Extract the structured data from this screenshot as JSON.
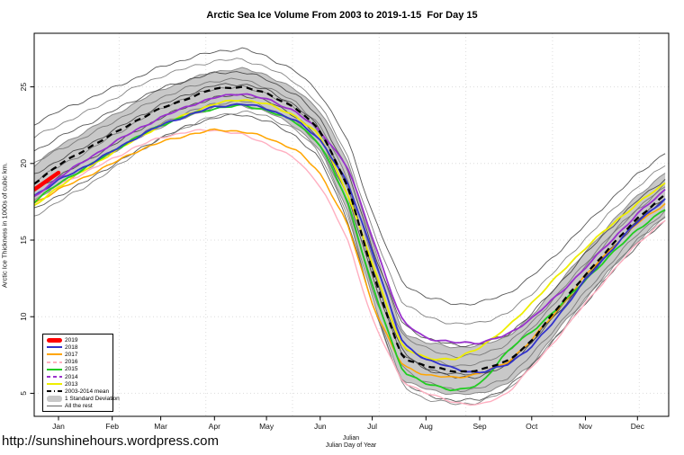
{
  "page": {
    "url_text": "http://sunshinehours.wordpress.com"
  },
  "chart_data": {
    "type": "line",
    "title": "Arctic Sea Ice Volume From 2003 to 2019-1-15  For Day 15",
    "ylabel": "Arctic Ice Thickness in 1000s of cubic km.",
    "xlabel_line1": "Julian",
    "xlabel_line2": "Julian Day of Year",
    "xlim": [
      1,
      367
    ],
    "ylim": [
      3.5,
      28.5
    ],
    "y_ticks": [
      5,
      10,
      15,
      20,
      25
    ],
    "x_gridline_days": [
      50,
      100,
      150,
      200,
      250,
      300,
      350
    ],
    "grid": "dotted",
    "legend_position": "bottom-left",
    "x_month_ticks": [
      {
        "label": "Jan",
        "day": 15
      },
      {
        "label": "Feb",
        "day": 46
      },
      {
        "label": "Mar",
        "day": 74
      },
      {
        "label": "Apr",
        "day": 105
      },
      {
        "label": "May",
        "day": 135
      },
      {
        "label": "Jun",
        "day": 166
      },
      {
        "label": "Jul",
        "day": 196
      },
      {
        "label": "Aug",
        "day": 227
      },
      {
        "label": "Sep",
        "day": 258
      },
      {
        "label": "Oct",
        "day": 288
      },
      {
        "label": "Nov",
        "day": 319
      },
      {
        "label": "Dec",
        "day": 349
      }
    ],
    "days": [
      1,
      15,
      32,
      46,
      60,
      74,
      91,
      105,
      121,
      135,
      152,
      166,
      182,
      196,
      213,
      227,
      244,
      258,
      274,
      288,
      305,
      319,
      335,
      349,
      365
    ],
    "band": {
      "name": "1 Standard Deviation",
      "fill": "#c8c8c8",
      "edge": "#8a8a8a",
      "upper": [
        19.9,
        21.1,
        22.2,
        23.1,
        24.0,
        24.8,
        25.5,
        26.0,
        26.2,
        25.8,
        24.8,
        23.5,
        20.1,
        14.9,
        9.0,
        8.3,
        8.0,
        8.1,
        8.7,
        10.0,
        12.4,
        14.2,
        16.3,
        17.9,
        19.4
      ],
      "lower": [
        17.5,
        18.7,
        19.8,
        20.7,
        21.6,
        22.4,
        23.1,
        23.7,
        23.8,
        23.4,
        22.4,
        20.9,
        16.9,
        11.2,
        5.8,
        5.3,
        4.9,
        5.0,
        5.6,
        6.9,
        9.4,
        11.2,
        13.3,
        14.9,
        16.6
      ]
    },
    "mean": {
      "name": "2003-2014 mean",
      "color": "#000000",
      "style": "dashed",
      "values": [
        18.7,
        19.9,
        21.0,
        21.9,
        22.8,
        23.6,
        24.3,
        24.9,
        25.0,
        24.6,
        23.6,
        22.2,
        18.5,
        13.0,
        7.3,
        6.8,
        6.4,
        6.5,
        7.1,
        8.4,
        10.9,
        12.7,
        14.8,
        16.4,
        18.0
      ]
    },
    "series": [
      {
        "name": "2016",
        "color": "#ffafc0",
        "width": 1.4,
        "values": [
          17.6,
          18.6,
          19.5,
          20.3,
          21.1,
          21.7,
          22.1,
          22.2,
          21.9,
          21.3,
          20.3,
          18.6,
          15.0,
          9.8,
          5.8,
          5.0,
          4.4,
          4.2,
          5.0,
          6.7,
          8.9,
          10.9,
          13.0,
          14.8,
          16.3
        ]
      },
      {
        "name": "2017",
        "color": "#ffa500",
        "width": 1.5,
        "values": [
          17.4,
          18.3,
          19.2,
          20.0,
          20.8,
          21.4,
          21.9,
          22.2,
          22.1,
          21.7,
          20.9,
          19.4,
          16.0,
          10.8,
          6.8,
          6.2,
          6.0,
          6.3,
          7.0,
          8.5,
          10.7,
          12.7,
          14.6,
          16.1,
          17.4
        ]
      },
      {
        "name": "2013",
        "color": "#eeee00",
        "width": 1.8,
        "values": [
          17.2,
          18.5,
          19.7,
          20.7,
          21.6,
          22.5,
          23.3,
          23.9,
          24.2,
          23.9,
          23.1,
          21.8,
          18.0,
          13.5,
          8.0,
          7.3,
          7.2,
          8.0,
          9.3,
          10.9,
          12.9,
          14.5,
          16.1,
          17.4,
          18.7
        ]
      },
      {
        "name": "2015",
        "color": "#22cc22",
        "width": 1.8,
        "values": [
          17.5,
          18.7,
          19.8,
          20.8,
          21.7,
          22.5,
          23.2,
          23.6,
          23.8,
          23.5,
          22.7,
          21.3,
          17.5,
          12.0,
          6.5,
          5.6,
          5.2,
          5.5,
          7.8,
          9.0,
          10.8,
          12.4,
          14.2,
          15.7,
          17.0
        ]
      },
      {
        "name": "2018",
        "color": "#3333cc",
        "width": 1.8,
        "values": [
          17.9,
          18.9,
          19.9,
          20.8,
          21.7,
          22.5,
          23.2,
          23.7,
          23.9,
          23.6,
          22.8,
          21.6,
          18.7,
          14.3,
          8.3,
          7.2,
          6.6,
          6.3,
          6.9,
          8.0,
          10.3,
          12.4,
          14.5,
          16.2,
          17.7
        ]
      },
      {
        "name": "2014",
        "color": "#9932cc",
        "width": 1.8,
        "values": [
          17.8,
          19.1,
          20.3,
          21.3,
          22.2,
          23.0,
          23.8,
          24.3,
          24.6,
          24.2,
          23.4,
          22.1,
          19.8,
          15.2,
          9.7,
          8.6,
          8.3,
          8.3,
          8.8,
          9.9,
          11.6,
          13.2,
          15.1,
          16.7,
          18.3
        ]
      }
    ],
    "series_2019": {
      "name": "2019",
      "color": "#ff0000",
      "width": 4.5,
      "days": [
        1,
        15
      ],
      "values": [
        18.3,
        19.4
      ]
    },
    "rest": {
      "name": "All the rest",
      "colors": [
        "#383838",
        "#6e6e6e"
      ],
      "series": [
        [
          22.6,
          23.4,
          24.2,
          24.9,
          25.6,
          26.3,
          26.9,
          27.3,
          27.5,
          27.0,
          26.0,
          24.6,
          21.5,
          16.8,
          12.2,
          11.3,
          10.8,
          10.9,
          11.5,
          12.6,
          14.4,
          16.0,
          17.8,
          19.3,
          20.7
        ],
        [
          21.7,
          22.5,
          23.4,
          24.2,
          25.0,
          25.7,
          26.3,
          26.7,
          26.8,
          26.3,
          25.3,
          23.8,
          20.5,
          15.7,
          10.9,
          10.0,
          9.5,
          9.6,
          10.2,
          11.5,
          13.4,
          15.1,
          17.0,
          18.5,
          19.9
        ],
        [
          20.8,
          21.7,
          22.6,
          23.4,
          24.2,
          24.9,
          25.5,
          25.9,
          26.0,
          25.5,
          24.5,
          23.0,
          19.5,
          14.5,
          9.5,
          8.6,
          8.1,
          8.2,
          8.8,
          10.2,
          12.3,
          14.1,
          16.0,
          17.6,
          19.0
        ],
        [
          20.0,
          20.9,
          21.8,
          22.7,
          23.5,
          24.3,
          25.0,
          25.4,
          25.5,
          25.0,
          24.0,
          22.5,
          19.0,
          13.9,
          8.8,
          7.9,
          7.4,
          7.5,
          8.2,
          9.6,
          11.7,
          13.5,
          15.5,
          17.1,
          18.6
        ],
        [
          19.3,
          20.2,
          21.2,
          22.1,
          23.0,
          23.8,
          24.6,
          25.1,
          25.2,
          24.8,
          23.8,
          22.3,
          18.5,
          13.1,
          7.7,
          6.6,
          6.0,
          6.1,
          6.8,
          8.3,
          10.5,
          12.4,
          14.5,
          16.2,
          17.7
        ],
        [
          18.8,
          19.8,
          20.8,
          21.8,
          22.7,
          23.6,
          24.4,
          24.9,
          25.0,
          24.6,
          23.6,
          22.1,
          18.4,
          13.2,
          8.1,
          7.2,
          6.8,
          6.9,
          7.7,
          9.2,
          11.4,
          13.3,
          15.4,
          17.0,
          18.5
        ],
        [
          18.2,
          19.2,
          20.2,
          21.2,
          22.1,
          23.0,
          23.8,
          24.3,
          24.5,
          24.1,
          23.1,
          21.6,
          17.9,
          12.6,
          7.5,
          6.6,
          6.2,
          6.3,
          6.9,
          8.4,
          10.6,
          12.5,
          14.6,
          16.3,
          17.8
        ],
        [
          17.6,
          18.6,
          19.7,
          20.7,
          21.7,
          22.6,
          23.4,
          23.9,
          24.1,
          23.7,
          22.7,
          21.2,
          17.3,
          11.8,
          6.7,
          5.7,
          5.2,
          5.3,
          6.0,
          7.5,
          9.7,
          11.6,
          13.7,
          15.4,
          16.9
        ],
        [
          17.0,
          17.9,
          18.9,
          19.9,
          20.8,
          21.7,
          22.5,
          23.0,
          23.2,
          22.8,
          21.8,
          20.3,
          16.3,
          10.8,
          5.7,
          4.9,
          4.5,
          4.6,
          5.3,
          6.8,
          9.0,
          10.9,
          13.0,
          14.7,
          16.2
        ],
        [
          16.6,
          17.5,
          18.6,
          19.6,
          20.7,
          21.6,
          22.5,
          23.1,
          23.4,
          23.1,
          22.2,
          20.7,
          16.6,
          10.9,
          5.5,
          4.6,
          4.3,
          4.4,
          5.2,
          6.8,
          9.1,
          11.1,
          13.3,
          15.0,
          16.5
        ]
      ]
    }
  },
  "legend": {
    "items": [
      {
        "label": "2019",
        "type": "thick",
        "color": "#ff0000"
      },
      {
        "label": "2018",
        "type": "line",
        "color": "#3333cc"
      },
      {
        "label": "2017",
        "type": "line",
        "color": "#ffa500"
      },
      {
        "label": "2016",
        "type": "dashed2",
        "color": "#ffafc0"
      },
      {
        "label": "2015",
        "type": "line",
        "color": "#22cc22"
      },
      {
        "label": "2014",
        "type": "dashed2",
        "color": "#9932cc"
      },
      {
        "label": "2013",
        "type": "line",
        "color": "#eeee00"
      },
      {
        "label": "2003-2014 mean",
        "type": "dashdot",
        "color": "#000000"
      },
      {
        "label": "1 Standard Deviation",
        "type": "band",
        "color": "#c8c8c8"
      },
      {
        "label": "All the rest",
        "type": "thin",
        "color": "#666666"
      }
    ]
  }
}
